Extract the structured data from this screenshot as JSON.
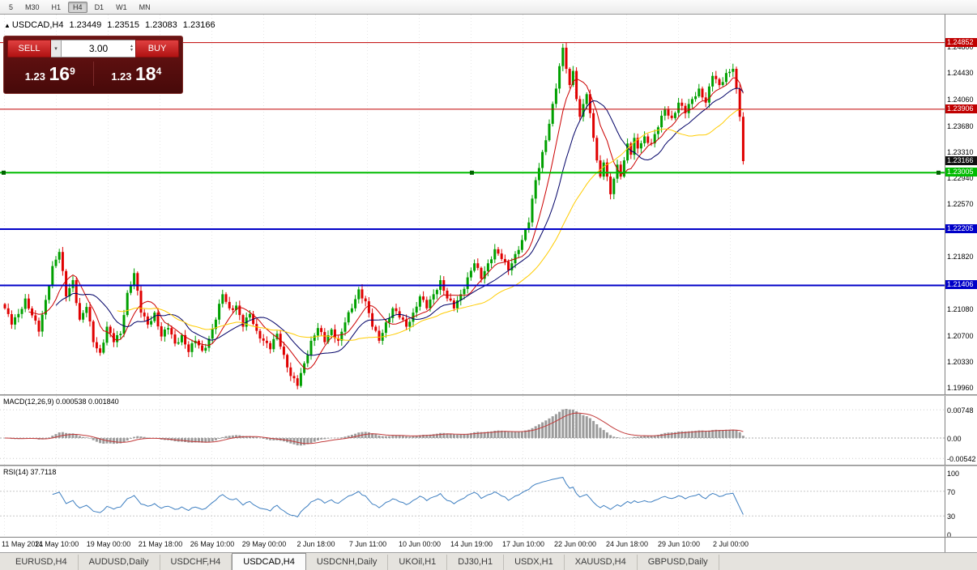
{
  "toolbar": {
    "timeframes": [
      "5",
      "M30",
      "H1",
      "H4",
      "D1",
      "W1",
      "MN"
    ],
    "active": "H4"
  },
  "chart": {
    "marker": "▲",
    "symbol_period": "USDCAD,H4",
    "ohlc": {
      "open": "1.23449",
      "high": "1.23515",
      "low": "1.23083",
      "close": "1.23166"
    }
  },
  "trade_panel": {
    "sell_label": "SELL",
    "buy_label": "BUY",
    "volume": "3.00",
    "caret": "▾",
    "spin_up": "▲",
    "spin_down": "▼",
    "sell_price": {
      "base": "1.23",
      "pips": "16",
      "pipette": "9"
    },
    "buy_price": {
      "base": "1.23",
      "pips": "18",
      "pipette": "4"
    }
  },
  "price_axis": {
    "ticks": [
      "1.24800",
      "1.24430",
      "1.24060",
      "1.23680",
      "1.23310",
      "1.22940",
      "1.22570",
      "1.22200",
      "1.21820",
      "1.21450",
      "1.21080",
      "1.20700",
      "1.20330",
      "1.19960"
    ],
    "levels": [
      {
        "label": "1.24852",
        "value": 1.24852,
        "color": "#C00000",
        "line": "thin"
      },
      {
        "label": "1.23906",
        "value": 1.23906,
        "color": "#C00000",
        "line": "thin"
      },
      {
        "label": "1.23166",
        "value": 1.23166,
        "color": "#101010",
        "line": "none"
      },
      {
        "label": "1.23005",
        "value": 1.23005,
        "color": "#00BB00",
        "line": "thick",
        "selected": true
      },
      {
        "label": "1.22205",
        "value": 1.22205,
        "color": "#0000C8",
        "line": "thick"
      },
      {
        "label": "1.21406",
        "value": 1.21406,
        "color": "#0000C8",
        "line": "thick"
      }
    ]
  },
  "time_axis": {
    "labels": [
      "11 May 2021",
      "14 May 10:00",
      "19 May 00:00",
      "21 May 18:00",
      "26 May 10:00",
      "29 May 00:00",
      "2 Jun 18:00",
      "7 Jun 11:00",
      "10 Jun 00:00",
      "14 Jun 19:00",
      "17 Jun 10:00",
      "22 Jun 00:00",
      "24 Jun 18:00",
      "29 Jun 10:00",
      "2 Jul 00:00"
    ]
  },
  "macd_panel": {
    "label": "MACD(12,26,9) 0.000538 0.001840",
    "ticks": [
      "0.00748",
      "0.00",
      "-0.00542"
    ]
  },
  "rsi_panel": {
    "label": "RSI(14) 37.7118",
    "ticks": [
      "100",
      "70",
      "30",
      "0"
    ]
  },
  "tabs": {
    "active_index": 3,
    "items": [
      "EURUSD,H4",
      "AUDUSD,Daily",
      "USDCHF,H4",
      "USDCAD,H4",
      "USDCNH,Daily",
      "UKOil,H1",
      "DJ30,H1",
      "USDX,H1",
      "XAUUSD,H4",
      "GBPUSD,Daily"
    ]
  },
  "chart_data": {
    "type": "candlestick",
    "symbol": "USDCAD",
    "timeframe": "H4",
    "bars_total": 218,
    "y_range": [
      1.1986,
      1.2525
    ],
    "colors": {
      "up": "#00A000",
      "down": "#E00000"
    },
    "overlays": [
      {
        "type": "sma",
        "period": 8,
        "color": "#CC0000"
      },
      {
        "type": "sma",
        "period": 16,
        "color": "#000066"
      },
      {
        "type": "sma",
        "period": 34,
        "color": "#FFCC00"
      }
    ],
    "indicators": [
      {
        "type": "macd",
        "params": [
          12,
          26,
          9
        ],
        "values": [
          0.000538,
          0.00184
        ]
      },
      {
        "type": "rsi",
        "params": [
          14
        ],
        "value": 37.7118
      }
    ],
    "h_lines": [
      1.24852,
      1.23906,
      1.23005,
      1.22205,
      1.21406
    ],
    "price_path": [
      [
        0,
        1.2108
      ],
      [
        2,
        1.2085
      ],
      [
        4,
        1.21
      ],
      [
        6,
        1.2122
      ],
      [
        8,
        1.2098
      ],
      [
        10,
        1.2075
      ],
      [
        12,
        1.212
      ],
      [
        14,
        1.2168
      ],
      [
        16,
        1.2188
      ],
      [
        18,
        1.2125
      ],
      [
        20,
        1.2148
      ],
      [
        22,
        1.2092
      ],
      [
        24,
        1.211
      ],
      [
        26,
        1.206
      ],
      [
        28,
        1.2045
      ],
      [
        30,
        1.2082
      ],
      [
        32,
        1.206
      ],
      [
        34,
        1.2072
      ],
      [
        36,
        1.213
      ],
      [
        38,
        1.2158
      ],
      [
        40,
        1.2102
      ],
      [
        42,
        1.2085
      ],
      [
        44,
        1.2102
      ],
      [
        46,
        1.2068
      ],
      [
        48,
        1.208
      ],
      [
        50,
        1.2058
      ],
      [
        52,
        1.207
      ],
      [
        54,
        1.2046
      ],
      [
        56,
        1.2062
      ],
      [
        58,
        1.2048
      ],
      [
        60,
        1.2065
      ],
      [
        62,
        1.2092
      ],
      [
        64,
        1.2128
      ],
      [
        66,
        1.2108
      ],
      [
        68,
        1.2112
      ],
      [
        70,
        1.2082
      ],
      [
        72,
        1.21
      ],
      [
        74,
        1.2076
      ],
      [
        76,
        1.2062
      ],
      [
        78,
        1.205
      ],
      [
        80,
        1.2072
      ],
      [
        82,
        1.2042
      ],
      [
        84,
        1.2012
      ],
      [
        86,
        1.1998
      ],
      [
        88,
        1.203
      ],
      [
        90,
        1.2062
      ],
      [
        92,
        1.208
      ],
      [
        94,
        1.206
      ],
      [
        96,
        1.2078
      ],
      [
        98,
        1.2062
      ],
      [
        100,
        1.2088
      ],
      [
        102,
        1.2108
      ],
      [
        104,
        1.2135
      ],
      [
        106,
        1.2118
      ],
      [
        108,
        1.2082
      ],
      [
        110,
        1.2062
      ],
      [
        112,
        1.2088
      ],
      [
        114,
        1.2108
      ],
      [
        116,
        1.2095
      ],
      [
        118,
        1.2082
      ],
      [
        120,
        1.2102
      ],
      [
        122,
        1.2125
      ],
      [
        124,
        1.2108
      ],
      [
        126,
        1.2128
      ],
      [
        128,
        1.2148
      ],
      [
        130,
        1.2122
      ],
      [
        132,
        1.2108
      ],
      [
        134,
        1.2128
      ],
      [
        136,
        1.2152
      ],
      [
        138,
        1.2172
      ],
      [
        140,
        1.215
      ],
      [
        142,
        1.2172
      ],
      [
        144,
        1.2192
      ],
      [
        146,
        1.2178
      ],
      [
        148,
        1.2162
      ],
      [
        150,
        1.2185
      ],
      [
        152,
        1.2205
      ],
      [
        154,
        1.223
      ],
      [
        156,
        1.229
      ],
      [
        158,
        1.233
      ],
      [
        160,
        1.237
      ],
      [
        162,
        1.242
      ],
      [
        164,
        1.2478
      ],
      [
        165,
        1.2448
      ],
      [
        166,
        1.2425
      ],
      [
        167,
        1.2445
      ],
      [
        168,
        1.2405
      ],
      [
        169,
        1.238
      ],
      [
        170,
        1.2398
      ],
      [
        171,
        1.2412
      ],
      [
        172,
        1.2385
      ],
      [
        173,
        1.235
      ],
      [
        174,
        1.2318
      ],
      [
        175,
        1.2295
      ],
      [
        176,
        1.2315
      ],
      [
        177,
        1.2295
      ],
      [
        178,
        1.227
      ],
      [
        179,
        1.2292
      ],
      [
        180,
        1.2312
      ],
      [
        181,
        1.2295
      ],
      [
        182,
        1.2318
      ],
      [
        183,
        1.2342
      ],
      [
        184,
        1.2326
      ],
      [
        185,
        1.235
      ],
      [
        186,
        1.2335
      ],
      [
        188,
        1.2352
      ],
      [
        190,
        1.2342
      ],
      [
        192,
        1.2365
      ],
      [
        194,
        1.239
      ],
      [
        196,
        1.2378
      ],
      [
        198,
        1.24
      ],
      [
        200,
        1.2385
      ],
      [
        202,
        1.2405
      ],
      [
        204,
        1.242
      ],
      [
        206,
        1.24
      ],
      [
        208,
        1.2438
      ],
      [
        210,
        1.2425
      ],
      [
        212,
        1.2442
      ],
      [
        214,
        1.2448
      ],
      [
        215,
        1.242
      ],
      [
        216,
        1.238
      ],
      [
        217,
        1.2317
      ]
    ]
  }
}
